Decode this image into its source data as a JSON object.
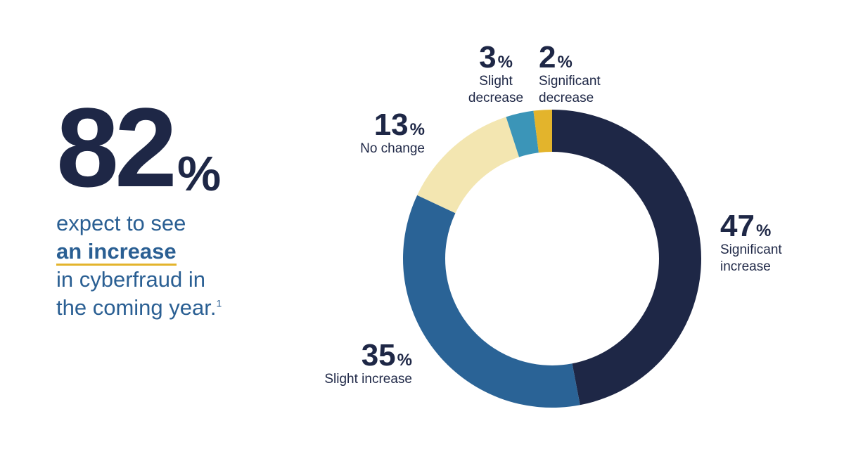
{
  "headline": {
    "number": "82",
    "unit": "%",
    "line1": "expect to see",
    "emphasis": "an increase",
    "line3": "in cyberfraud in",
    "line4": "the coming year.",
    "footnote": "1"
  },
  "chart_data": {
    "type": "pie",
    "variant": "donut",
    "slices": [
      {
        "label": "Significant increase",
        "value": 47,
        "display": "47",
        "color": "#1e2746"
      },
      {
        "label": "Slight increase",
        "value": 35,
        "display": "35",
        "color": "#2a6396"
      },
      {
        "label": "No change",
        "value": 13,
        "display": "13",
        "color": "#f3e6b1"
      },
      {
        "label": "Slight decrease",
        "value": 3,
        "display": "3",
        "color": "#3b95b8"
      },
      {
        "label": "Significant decrease",
        "value": 2,
        "display": "2",
        "color": "#e3b42c"
      }
    ],
    "unit": "%",
    "label_lines": {
      "significant_increase": [
        "Significant",
        "increase"
      ],
      "slight_increase": [
        "Slight increase"
      ],
      "no_change": [
        "No change"
      ],
      "slight_decrease": [
        "Slight",
        "decrease"
      ],
      "significant_decrease": [
        "Significant",
        "decrease"
      ]
    }
  }
}
